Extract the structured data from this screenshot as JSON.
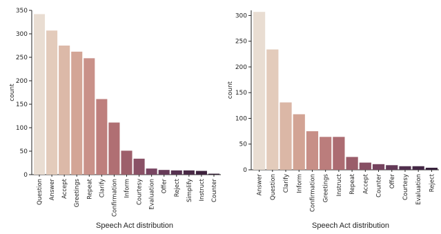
{
  "chart_data": [
    {
      "type": "bar",
      "ylabel": "count",
      "xlabel": "",
      "caption": "Speech Act distribution",
      "ylim": [
        0,
        350
      ],
      "yticks": [
        0,
        50,
        100,
        150,
        200,
        250,
        300,
        350
      ],
      "categories": [
        "Question",
        "Answer",
        "Accept",
        "Greetings",
        "Repeat",
        "Clarify",
        "Confirmation",
        "Inform",
        "Courtesy",
        "Evaluation",
        "Offer",
        "Reject",
        "Simplify",
        "Instruct",
        "Counter"
      ],
      "values": [
        342,
        307,
        275,
        262,
        248,
        161,
        111,
        51,
        34,
        13,
        10,
        9,
        9,
        8,
        2
      ],
      "colors": [
        "#e9ddd2",
        "#e3cbbb",
        "#dcb9a8",
        "#d3a596",
        "#c99189",
        "#be7f7d",
        "#b06f73",
        "#9d5f6b",
        "#8a5166",
        "#784561",
        "#673b59",
        "#573251",
        "#4a2a46",
        "#3e233d",
        "#311c32"
      ]
    },
    {
      "type": "bar",
      "ylabel": "count",
      "xlabel": "",
      "caption": "Speech Act distribution",
      "ylim": [
        0,
        310
      ],
      "yticks": [
        0,
        50,
        100,
        150,
        200,
        250,
        300
      ],
      "categories": [
        "Answer",
        "Question",
        "Clarify",
        "Inform",
        "Confirmation",
        "Greetings",
        "Instruct",
        "Repeat",
        "Accept",
        "Counter",
        "Offer",
        "Courtesy",
        "Evaluation",
        "Reject"
      ],
      "values": [
        307,
        234,
        131,
        108,
        75,
        64,
        64,
        25,
        14,
        11,
        9,
        7,
        7,
        4
      ],
      "colors": [
        "#e9ddd2",
        "#e3cbbb",
        "#dbb7a6",
        "#d2a394",
        "#c78f87",
        "#bb7d7c",
        "#ac6c72",
        "#9a5d6a",
        "#875064",
        "#75435e",
        "#633957",
        "#52304e",
        "#442845",
        "#37203b"
      ]
    }
  ]
}
